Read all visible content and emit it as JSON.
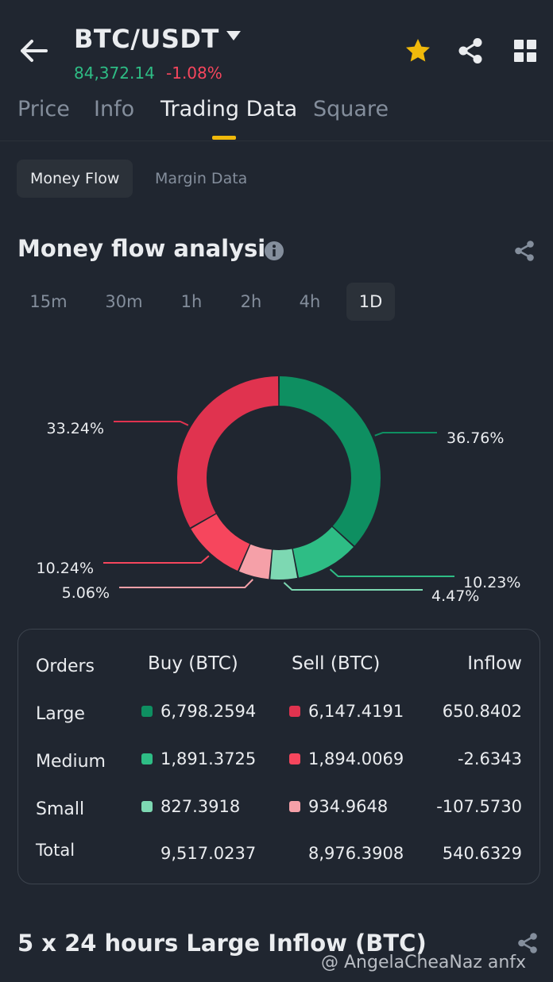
{
  "header": {
    "pair": "BTC/USDT",
    "last_price": "84,372.14",
    "change_pct": "-1.08%",
    "price_color": "#2EBD85",
    "change_color": "#F6465D",
    "icons": [
      "arrow-left-icon",
      "caret-down-icon",
      "star-icon",
      "share-icon",
      "grid-icon"
    ]
  },
  "tabs": [
    {
      "label": "Price"
    },
    {
      "label": "Info"
    },
    {
      "label": "Trading Data"
    },
    {
      "label": "Square"
    }
  ],
  "subtabs": [
    {
      "label": "Money Flow"
    },
    {
      "label": "Margin Data"
    }
  ],
  "section": {
    "title": "Money flow analysis"
  },
  "timeframes": [
    "15m",
    "30m",
    "1h",
    "2h",
    "4h",
    "1D"
  ],
  "selected_timeframe": "1D",
  "chart_data": {
    "type": "pie",
    "style": "donut",
    "slices": [
      {
        "name": "Large Buy",
        "value": 36.76,
        "label": "36.76%",
        "color": "#0E8F61"
      },
      {
        "name": "Medium Buy",
        "value": 10.23,
        "label": "10.23%",
        "color": "#2EBD85"
      },
      {
        "name": "Small Buy",
        "value": 4.47,
        "label": "4.47%",
        "color": "#7DD8B2"
      },
      {
        "name": "Small Sell",
        "value": 5.06,
        "label": "5.06%",
        "color": "#F5A0A8"
      },
      {
        "name": "Medium Sell",
        "value": 10.24,
        "label": "10.24%",
        "color": "#F6465D"
      },
      {
        "name": "Large Sell",
        "value": 33.24,
        "label": "33.24%",
        "color": "#E0334F"
      }
    ]
  },
  "table": {
    "headers": {
      "orders": "Orders",
      "buy": "Buy (BTC)",
      "sell": "Sell (BTC)",
      "inflow": "Inflow"
    },
    "rows": [
      {
        "label": "Large",
        "buy": "6,798.2594",
        "sell": "6,147.4191",
        "inflow": "650.8402",
        "buy_color": "#0E8F61",
        "sell_color": "#E0334F"
      },
      {
        "label": "Medium",
        "buy": "1,891.3725",
        "sell": "1,894.0069",
        "inflow": "-2.6343",
        "buy_color": "#2EBD85",
        "sell_color": "#F6465D"
      },
      {
        "label": "Small",
        "buy": "827.3918",
        "sell": "934.9648",
        "inflow": "-107.5730",
        "buy_color": "#7DD8B2",
        "sell_color": "#F5A0A8"
      }
    ],
    "total": {
      "label": "Total",
      "buy": "9,517.0237",
      "sell": "8,976.3908",
      "inflow": "540.6329"
    }
  },
  "bottom_section": {
    "title": "5 x 24 hours Large Inflow (BTC)"
  },
  "watermark": "@ AngelaCheaNaz anfx"
}
